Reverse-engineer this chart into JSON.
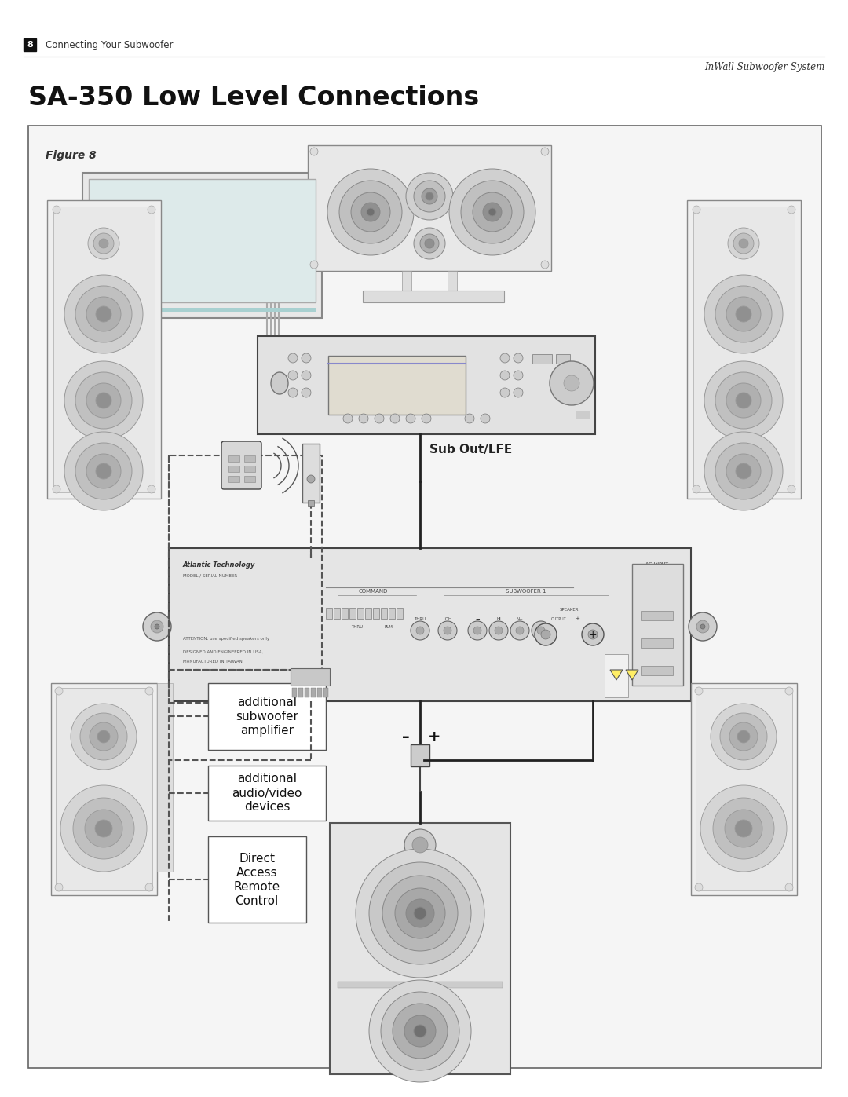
{
  "page_title": "SA-350 Low Level Connections",
  "header_left_num": "8",
  "header_left_text": "Connecting Your Subwoofer",
  "header_right_text": "InWall Subwoofer System",
  "figure_label": "Figure 8",
  "sub_out_lfe_label": "Sub Out/LFE",
  "minus_label": "–",
  "plus_label": "+",
  "box1_lines": [
    "additional",
    "subwoofer",
    "amplifier"
  ],
  "box2_lines": [
    "additional",
    "audio/video",
    "devices"
  ],
  "box3_lines": [
    "Direct",
    "Access",
    "Remote",
    "Control"
  ],
  "bg_color": "#ffffff",
  "diagram_bg": "#f5f5f5",
  "light_gray": "#cccccc",
  "mid_gray": "#888888",
  "dark_gray": "#333333",
  "teal_color": "#a8d0d0"
}
